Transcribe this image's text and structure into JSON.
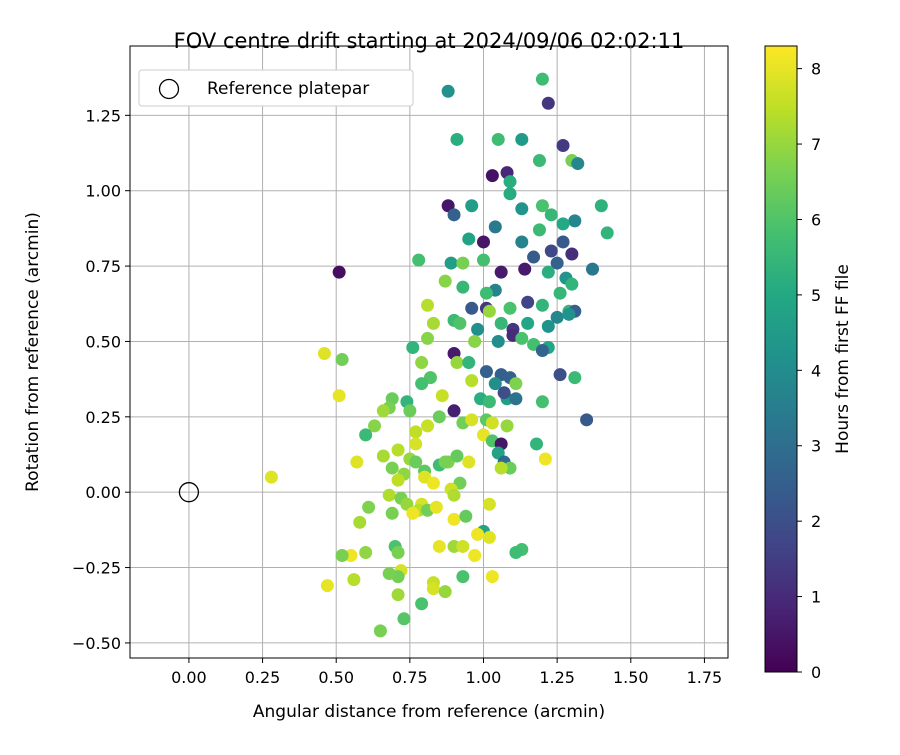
{
  "chart_data": {
    "type": "scatter",
    "title": "FOV centre drift starting at 2024/09/06 02:02:11",
    "xlabel": "Angular distance from reference (arcmin)",
    "ylabel": "Rotation from reference (arcmin)",
    "xlim": [
      -0.2,
      1.83
    ],
    "ylim": [
      -0.55,
      1.48
    ],
    "xticks": [
      0.0,
      0.25,
      0.5,
      0.75,
      1.0,
      1.25,
      1.5,
      1.75
    ],
    "xtick_labels": [
      "0.00",
      "0.25",
      "0.50",
      "0.75",
      "1.00",
      "1.25",
      "1.50",
      "1.75"
    ],
    "yticks": [
      -0.5,
      -0.25,
      0.0,
      0.25,
      0.5,
      0.75,
      1.0,
      1.25
    ],
    "ytick_labels": [
      "−0.50",
      "−0.25",
      "0.00",
      "0.25",
      "0.50",
      "0.75",
      "1.00",
      "1.25"
    ],
    "grid": true,
    "legend": {
      "placement": "top-left",
      "label": "Reference platepar"
    },
    "reference_point": {
      "x": 0.0,
      "y": 0.0
    },
    "colorbar": {
      "label": "Hours from first FF file",
      "min": 0,
      "max": 8.3,
      "ticks": [
        0,
        1,
        2,
        3,
        4,
        5,
        6,
        7,
        8
      ],
      "tick_labels": [
        "0",
        "1",
        "2",
        "3",
        "4",
        "5",
        "6",
        "7",
        "8"
      ],
      "colormap": "viridis",
      "colors": [
        "#440154",
        "#482475",
        "#414487",
        "#355f8d",
        "#2a788e",
        "#21918c",
        "#22a884",
        "#44bf70",
        "#7ad151",
        "#bddf26",
        "#fde725"
      ]
    },
    "points": [
      [
        0.88,
        1.33,
        4.2
      ],
      [
        0.91,
        1.17,
        5.2
      ],
      [
        1.2,
        1.37,
        5.7
      ],
      [
        1.22,
        1.29,
        1.3
      ],
      [
        1.05,
        1.17,
        5.7
      ],
      [
        1.13,
        1.17,
        4.5
      ],
      [
        1.27,
        1.15,
        1.4
      ],
      [
        1.3,
        1.1,
        6.6
      ],
      [
        1.32,
        1.09,
        3.8
      ],
      [
        1.19,
        1.1,
        5.6
      ],
      [
        1.03,
        1.05,
        0.4
      ],
      [
        1.08,
        1.06,
        0.9
      ],
      [
        1.09,
        1.03,
        5.2
      ],
      [
        0.88,
        0.95,
        0.5
      ],
      [
        0.96,
        0.95,
        4.6
      ],
      [
        1.2,
        0.95,
        5.9
      ],
      [
        1.4,
        0.95,
        5.3
      ],
      [
        1.09,
        0.99,
        5.1
      ],
      [
        1.13,
        0.94,
        4.3
      ],
      [
        0.9,
        0.92,
        2.6
      ],
      [
        1.23,
        0.92,
        5.5
      ],
      [
        1.31,
        0.9,
        3.8
      ],
      [
        1.27,
        0.89,
        5.0
      ],
      [
        1.04,
        0.88,
        3.4
      ],
      [
        0.95,
        0.84,
        4.8
      ],
      [
        1.42,
        0.86,
        5.4
      ],
      [
        1.19,
        0.87,
        5.6
      ],
      [
        1.0,
        0.83,
        0.5
      ],
      [
        1.13,
        0.83,
        3.7
      ],
      [
        1.27,
        0.83,
        2.3
      ],
      [
        1.17,
        0.78,
        2.4
      ],
      [
        1.23,
        0.8,
        1.8
      ],
      [
        1.3,
        0.79,
        1.1
      ],
      [
        0.51,
        0.73,
        0.3
      ],
      [
        0.78,
        0.77,
        5.8
      ],
      [
        0.89,
        0.76,
        4.6
      ],
      [
        0.93,
        0.76,
        6.6
      ],
      [
        1.0,
        0.77,
        5.8
      ],
      [
        1.25,
        0.76,
        2.6
      ],
      [
        1.37,
        0.74,
        3.3
      ],
      [
        1.14,
        0.74,
        0.6
      ],
      [
        1.06,
        0.73,
        0.6
      ],
      [
        1.22,
        0.73,
        5.2
      ],
      [
        1.28,
        0.71,
        4.3
      ],
      [
        1.3,
        0.69,
        5.4
      ],
      [
        0.87,
        0.7,
        6.8
      ],
      [
        0.93,
        0.68,
        5.5
      ],
      [
        1.04,
        0.67,
        3.7
      ],
      [
        1.01,
        0.66,
        5.7
      ],
      [
        1.15,
        0.63,
        1.7
      ],
      [
        1.26,
        0.66,
        5.5
      ],
      [
        1.2,
        0.62,
        5.4
      ],
      [
        0.96,
        0.61,
        2.3
      ],
      [
        0.81,
        0.62,
        7.4
      ],
      [
        1.01,
        0.61,
        1.3
      ],
      [
        1.09,
        0.61,
        5.9
      ],
      [
        1.02,
        0.6,
        7.0
      ],
      [
        1.25,
        0.58,
        3.8
      ],
      [
        1.29,
        0.6,
        5.5
      ],
      [
        1.31,
        0.6,
        2.5
      ],
      [
        0.9,
        0.57,
        5.6
      ],
      [
        0.92,
        0.56,
        6.0
      ],
      [
        0.83,
        0.56,
        7.2
      ],
      [
        1.06,
        0.56,
        5.5
      ],
      [
        1.22,
        0.55,
        4.2
      ],
      [
        1.29,
        0.59,
        4.2
      ],
      [
        1.15,
        0.56,
        4.9
      ],
      [
        1.1,
        0.54,
        1.3
      ],
      [
        0.98,
        0.54,
        4.1
      ],
      [
        0.97,
        0.5,
        6.8
      ],
      [
        1.05,
        0.5,
        4.0
      ],
      [
        1.1,
        0.52,
        1.0
      ],
      [
        1.13,
        0.51,
        5.9
      ],
      [
        1.17,
        0.49,
        5.8
      ],
      [
        1.22,
        0.48,
        4.9
      ],
      [
        1.2,
        0.47,
        2.7
      ],
      [
        0.9,
        0.46,
        0.6
      ],
      [
        0.91,
        0.43,
        7.0
      ],
      [
        0.95,
        0.43,
        5.4
      ],
      [
        0.81,
        0.51,
        6.8
      ],
      [
        0.76,
        0.48,
        5.4
      ],
      [
        0.52,
        0.44,
        6.5
      ],
      [
        0.46,
        0.46,
        7.9
      ],
      [
        0.79,
        0.43,
        6.9
      ],
      [
        0.82,
        0.38,
        6.0
      ],
      [
        1.01,
        0.4,
        2.5
      ],
      [
        1.06,
        0.39,
        2.5
      ],
      [
        1.09,
        0.38,
        2.6
      ],
      [
        0.96,
        0.37,
        7.4
      ],
      [
        1.04,
        0.36,
        4.1
      ],
      [
        1.11,
        0.36,
        6.7
      ],
      [
        1.26,
        0.39,
        2.0
      ],
      [
        1.31,
        0.38,
        5.6
      ],
      [
        0.79,
        0.36,
        5.8
      ],
      [
        0.69,
        0.31,
        6.4
      ],
      [
        0.74,
        0.3,
        5.4
      ],
      [
        0.75,
        0.27,
        6.4
      ],
      [
        0.68,
        0.28,
        6.6
      ],
      [
        0.86,
        0.32,
        7.6
      ],
      [
        0.9,
        0.27,
        0.7
      ],
      [
        0.99,
        0.31,
        5.2
      ],
      [
        1.02,
        0.3,
        5.6
      ],
      [
        1.08,
        0.31,
        4.6
      ],
      [
        1.07,
        0.33,
        2.0
      ],
      [
        1.11,
        0.31,
        3.2
      ],
      [
        1.2,
        0.3,
        5.8
      ],
      [
        0.51,
        0.32,
        8.0
      ],
      [
        0.66,
        0.27,
        7.1
      ],
      [
        0.85,
        0.25,
        6.4
      ],
      [
        0.93,
        0.23,
        6.5
      ],
      [
        0.96,
        0.24,
        7.8
      ],
      [
        1.01,
        0.24,
        6.2
      ],
      [
        1.03,
        0.23,
        7.7
      ],
      [
        1.08,
        0.22,
        7.0
      ],
      [
        1.35,
        0.24,
        2.3
      ],
      [
        0.63,
        0.22,
        6.8
      ],
      [
        0.6,
        0.19,
        5.6
      ],
      [
        0.81,
        0.22,
        7.6
      ],
      [
        0.77,
        0.2,
        7.5
      ],
      [
        0.77,
        0.16,
        7.8
      ],
      [
        0.71,
        0.14,
        7.4
      ],
      [
        0.75,
        0.11,
        7.0
      ],
      [
        0.77,
        0.1,
        6.4
      ],
      [
        0.66,
        0.12,
        7.2
      ],
      [
        0.57,
        0.1,
        7.9
      ],
      [
        0.88,
        0.1,
        6.7
      ],
      [
        0.91,
        0.12,
        6.3
      ],
      [
        0.95,
        0.1,
        7.9
      ],
      [
        1.0,
        0.19,
        8.0
      ],
      [
        1.03,
        0.17,
        6.0
      ],
      [
        1.06,
        0.16,
        0.5
      ],
      [
        1.05,
        0.13,
        4.8
      ],
      [
        1.07,
        0.1,
        2.9
      ],
      [
        1.18,
        0.16,
        5.4
      ],
      [
        1.21,
        0.11,
        8.1
      ],
      [
        0.8,
        0.07,
        6.2
      ],
      [
        0.69,
        0.08,
        6.6
      ],
      [
        0.73,
        0.06,
        6.9
      ],
      [
        0.85,
        0.09,
        5.7
      ],
      [
        0.87,
        0.1,
        6.6
      ],
      [
        0.28,
        0.05,
        7.9
      ],
      [
        0.71,
        0.04,
        7.5
      ],
      [
        0.8,
        0.05,
        7.9
      ],
      [
        0.83,
        0.03,
        8.1
      ],
      [
        0.92,
        0.03,
        6.5
      ],
      [
        0.89,
        0.01,
        7.7
      ],
      [
        0.9,
        -0.01,
        7.3
      ],
      [
        1.09,
        0.08,
        6.4
      ],
      [
        1.06,
        0.08,
        7.4
      ],
      [
        0.68,
        -0.01,
        7.3
      ],
      [
        0.72,
        -0.02,
        6.6
      ],
      [
        0.74,
        -0.04,
        7.0
      ],
      [
        0.79,
        -0.04,
        7.8
      ],
      [
        0.78,
        -0.06,
        7.4
      ],
      [
        0.81,
        -0.06,
        6.5
      ],
      [
        0.84,
        -0.05,
        8.0
      ],
      [
        0.61,
        -0.05,
        6.7
      ],
      [
        0.69,
        -0.07,
        6.6
      ],
      [
        0.76,
        -0.07,
        8.1
      ],
      [
        1.02,
        -0.04,
        7.8
      ],
      [
        0.58,
        -0.1,
        7.2
      ],
      [
        0.9,
        -0.09,
        8.1
      ],
      [
        0.94,
        -0.08,
        6.3
      ],
      [
        1.0,
        -0.13,
        4.8
      ],
      [
        0.98,
        -0.14,
        8.1
      ],
      [
        1.02,
        -0.15,
        7.9
      ],
      [
        0.85,
        -0.18,
        8.0
      ],
      [
        0.9,
        -0.18,
        7.1
      ],
      [
        0.93,
        -0.18,
        7.7
      ],
      [
        0.7,
        -0.18,
        5.9
      ],
      [
        0.71,
        -0.2,
        6.6
      ],
      [
        0.6,
        -0.2,
        6.9
      ],
      [
        0.55,
        -0.21,
        8.1
      ],
      [
        0.52,
        -0.21,
        6.6
      ],
      [
        1.13,
        -0.19,
        5.8
      ],
      [
        1.11,
        -0.2,
        5.7
      ],
      [
        0.97,
        -0.21,
        8.1
      ],
      [
        0.72,
        -0.26,
        7.8
      ],
      [
        0.71,
        -0.28,
        6.5
      ],
      [
        0.68,
        -0.27,
        6.6
      ],
      [
        0.56,
        -0.29,
        7.4
      ],
      [
        0.47,
        -0.31,
        8.0
      ],
      [
        0.83,
        -0.3,
        7.6
      ],
      [
        0.93,
        -0.28,
        5.9
      ],
      [
        1.03,
        -0.28,
        8.1
      ],
      [
        0.71,
        -0.34,
        7.1
      ],
      [
        0.83,
        -0.32,
        7.8
      ],
      [
        0.87,
        -0.33,
        7.0
      ],
      [
        0.79,
        -0.37,
        5.9
      ],
      [
        0.73,
        -0.42,
        6.1
      ],
      [
        0.65,
        -0.46,
        6.6
      ]
    ]
  }
}
